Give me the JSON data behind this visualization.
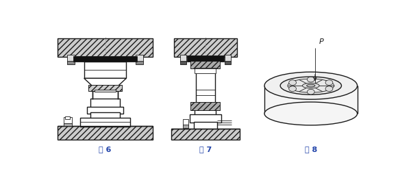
{
  "background_color": "#ffffff",
  "line_color": "#1a1a1a",
  "label_color": "#2244aa",
  "fig6_label": "图 6",
  "fig7_label": "图 7",
  "fig8_label": "图 8",
  "p_label": "P"
}
